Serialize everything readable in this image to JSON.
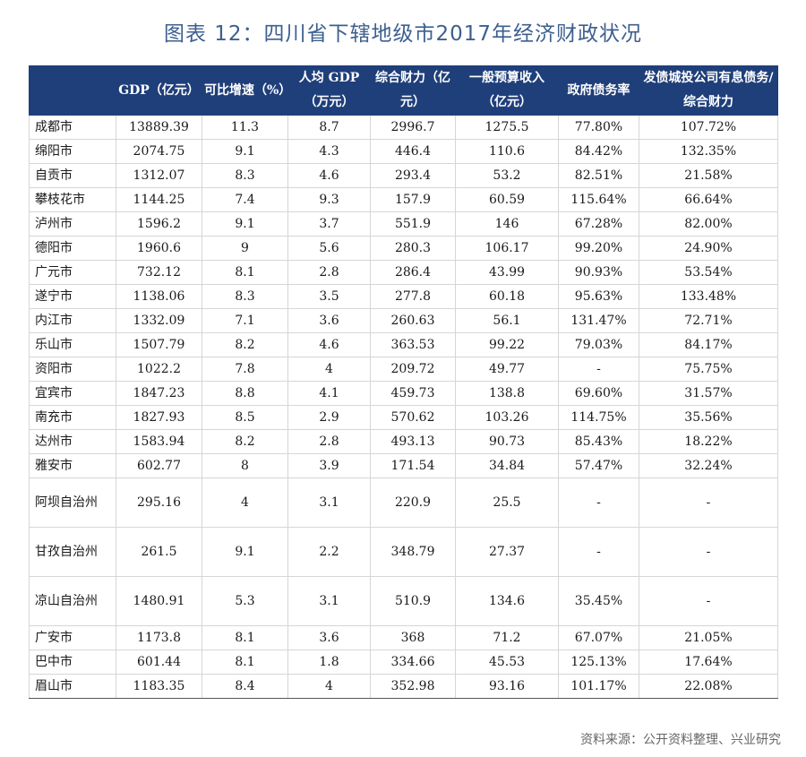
{
  "title": "图表 12：四川省下辖地级市2017年经济财政状况",
  "headers": [
    "",
    "GDP（亿元）",
    "可比增速（%）",
    "人均 GDP（万元）",
    "综合财力（亿元）",
    "一般预算收入（亿元）",
    "政府债务率",
    "发债城投公司有息债务/综合财力"
  ],
  "rows": [
    [
      "成都市",
      "13889.39",
      "11.3",
      "8.7",
      "2996.7",
      "1275.5",
      "77.80%",
      "107.72%"
    ],
    [
      "绵阳市",
      "2074.75",
      "9.1",
      "4.3",
      "446.4",
      "110.6",
      "84.42%",
      "132.35%"
    ],
    [
      "自贡市",
      "1312.07",
      "8.3",
      "4.6",
      "293.4",
      "53.2",
      "82.51%",
      "21.58%"
    ],
    [
      "攀枝花市",
      "1144.25",
      "7.4",
      "9.3",
      "157.9",
      "60.59",
      "115.64%",
      "66.64%"
    ],
    [
      "泸州市",
      "1596.2",
      "9.1",
      "3.7",
      "551.9",
      "146",
      "67.28%",
      "82.00%"
    ],
    [
      "德阳市",
      "1960.6",
      "9",
      "5.6",
      "280.3",
      "106.17",
      "99.20%",
      "24.90%"
    ],
    [
      "广元市",
      "732.12",
      "8.1",
      "2.8",
      "286.4",
      "43.99",
      "90.93%",
      "53.54%"
    ],
    [
      "遂宁市",
      "1138.06",
      "8.3",
      "3.5",
      "277.8",
      "60.18",
      "95.63%",
      "133.48%"
    ],
    [
      "内江市",
      "1332.09",
      "7.1",
      "3.6",
      "260.63",
      "56.1",
      "131.47%",
      "72.71%"
    ],
    [
      "乐山市",
      "1507.79",
      "8.2",
      "4.6",
      "363.53",
      "99.22",
      "79.03%",
      "84.17%"
    ],
    [
      "资阳市",
      "1022.2",
      "7.8",
      "4",
      "209.72",
      "49.77",
      "-",
      "75.75%"
    ],
    [
      "宜宾市",
      "1847.23",
      "8.8",
      "4.1",
      "459.73",
      "138.8",
      "69.60%",
      "31.57%"
    ],
    [
      "南充市",
      "1827.93",
      "8.5",
      "2.9",
      "570.62",
      "103.26",
      "114.75%",
      "35.56%"
    ],
    [
      "达州市",
      "1583.94",
      "8.2",
      "2.8",
      "493.13",
      "90.73",
      "85.43%",
      "18.22%"
    ],
    [
      "雅安市",
      "602.77",
      "8",
      "3.9",
      "171.54",
      "34.84",
      "57.47%",
      "32.24%"
    ],
    [
      "阿坝自治州",
      "295.16",
      "4",
      "3.1",
      "220.9",
      "25.5",
      "-",
      "-"
    ],
    [
      "甘孜自治州",
      "261.5",
      "9.1",
      "2.2",
      "348.79",
      "27.37",
      "-",
      "-"
    ],
    [
      "凉山自治州",
      "1480.91",
      "5.3",
      "3.1",
      "510.9",
      "134.6",
      "35.45%",
      "-"
    ],
    [
      "广安市",
      "1173.8",
      "8.1",
      "3.6",
      "368",
      "71.2",
      "67.07%",
      "21.05%"
    ],
    [
      "巴中市",
      "601.44",
      "8.1",
      "1.8",
      "334.66",
      "45.53",
      "125.13%",
      "17.64%"
    ],
    [
      "眉山市",
      "1183.35",
      "8.4",
      "4",
      "352.98",
      "93.16",
      "101.17%",
      "22.08%"
    ]
  ],
  "source": "资料来源：公开资料整理、兴业研究"
}
